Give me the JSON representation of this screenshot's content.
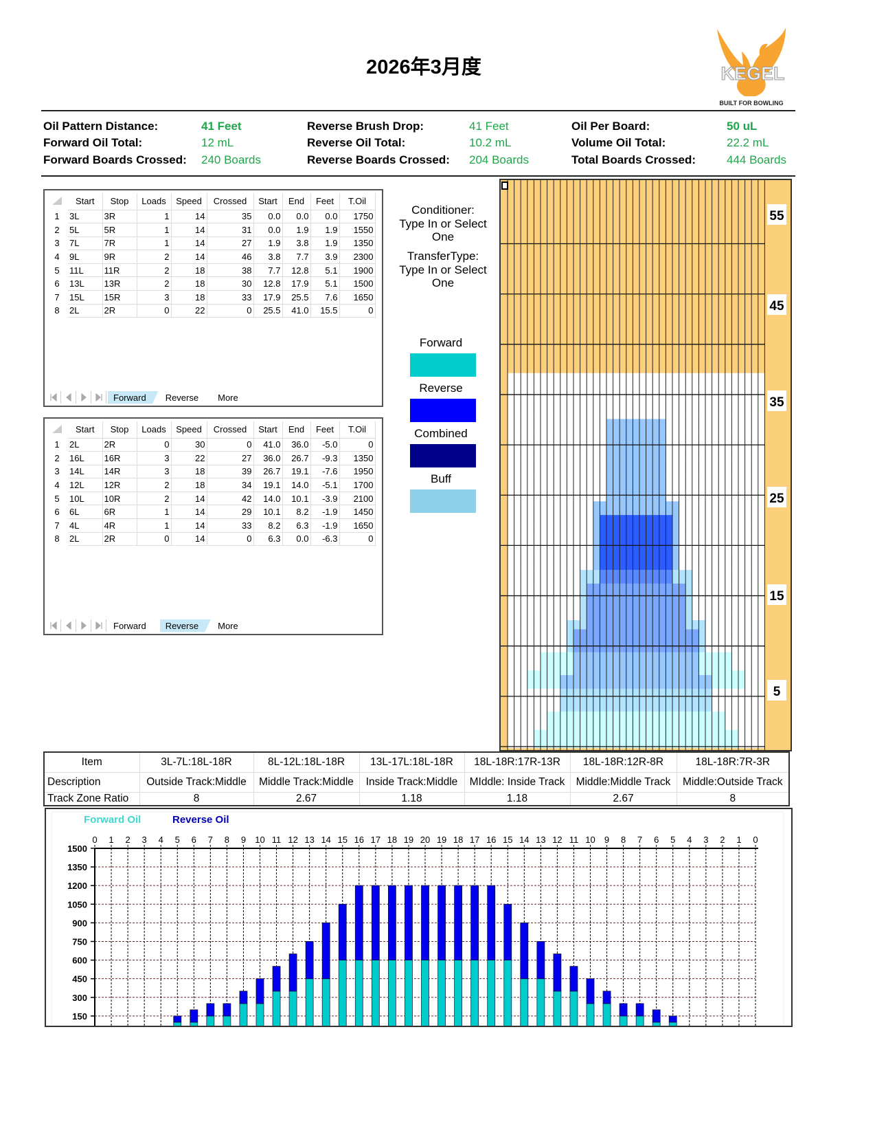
{
  "header": {
    "title": "2026年3月度",
    "logo_text": "KEGEL",
    "logo_tagline": "BUILT FOR BOWLING"
  },
  "stats": [
    [
      {
        "label": "Oil Pattern Distance:",
        "value": "41 Feet",
        "bold": true
      },
      {
        "label": "Reverse Brush Drop:",
        "value": "41 Feet"
      },
      {
        "label": "Oil Per Board:",
        "value": "50 uL",
        "bold": true
      }
    ],
    [
      {
        "label": "Forward Oil Total:",
        "value": "12 mL"
      },
      {
        "label": "Reverse Oil Total:",
        "value": "10.2 mL"
      },
      {
        "label": "Volume Oil Total:",
        "value": "22.2 mL"
      }
    ],
    [
      {
        "label": "Forward Boards Crossed:",
        "value": "240 Boards"
      },
      {
        "label": "Reverse Boards Crossed:",
        "value": "204 Boards"
      },
      {
        "label": "Total Boards Crossed:",
        "value": "444 Boards"
      }
    ]
  ],
  "columns": [
    "Start",
    "Stop",
    "Loads",
    "Speed",
    "Crossed",
    "Start",
    "End",
    "Feet",
    "T.Oil"
  ],
  "forward_table": {
    "rows": [
      [
        "3L",
        "3R",
        "1",
        "14",
        "35",
        "0.0",
        "0.0",
        "0.0",
        "1750"
      ],
      [
        "5L",
        "5R",
        "1",
        "14",
        "31",
        "0.0",
        "1.9",
        "1.9",
        "1550"
      ],
      [
        "7L",
        "7R",
        "1",
        "14",
        "27",
        "1.9",
        "3.8",
        "1.9",
        "1350"
      ],
      [
        "9L",
        "9R",
        "2",
        "14",
        "46",
        "3.8",
        "7.7",
        "3.9",
        "2300"
      ],
      [
        "11L",
        "11R",
        "2",
        "18",
        "38",
        "7.7",
        "12.8",
        "5.1",
        "1900"
      ],
      [
        "13L",
        "13R",
        "2",
        "18",
        "30",
        "12.8",
        "17.9",
        "5.1",
        "1500"
      ],
      [
        "15L",
        "15R",
        "3",
        "18",
        "33",
        "17.9",
        "25.5",
        "7.6",
        "1650"
      ],
      [
        "2L",
        "2R",
        "0",
        "22",
        "0",
        "25.5",
        "41.0",
        "15.5",
        "0"
      ]
    ],
    "active_tab": 0
  },
  "reverse_table": {
    "rows": [
      [
        "2L",
        "2R",
        "0",
        "30",
        "0",
        "41.0",
        "36.0",
        "-5.0",
        "0"
      ],
      [
        "16L",
        "16R",
        "3",
        "22",
        "27",
        "36.0",
        "26.7",
        "-9.3",
        "1350"
      ],
      [
        "14L",
        "14R",
        "3",
        "18",
        "39",
        "26.7",
        "19.1",
        "-7.6",
        "1950"
      ],
      [
        "12L",
        "12R",
        "2",
        "18",
        "34",
        "19.1",
        "14.0",
        "-5.1",
        "1700"
      ],
      [
        "10L",
        "10R",
        "2",
        "14",
        "42",
        "14.0",
        "10.1",
        "-3.9",
        "2100"
      ],
      [
        "6L",
        "6R",
        "1",
        "14",
        "29",
        "10.1",
        "8.2",
        "-1.9",
        "1450"
      ],
      [
        "4L",
        "4R",
        "1",
        "14",
        "33",
        "8.2",
        "6.3",
        "-1.9",
        "1650"
      ],
      [
        "2L",
        "2R",
        "0",
        "14",
        "0",
        "6.3",
        "0.0",
        "-6.3",
        "0"
      ]
    ],
    "active_tab": 1
  },
  "tabs": [
    "Forward",
    "Reverse",
    "More"
  ],
  "side": {
    "conditioner": [
      "Conditioner:",
      "Type In or Select",
      "One"
    ],
    "transfer": [
      "TransferType:",
      "Type In or Select",
      "One"
    ],
    "legend": [
      {
        "label": "Forward",
        "color": "#00cccc"
      },
      {
        "label": "Reverse",
        "color": "#0000ff"
      },
      {
        "label": "Combined",
        "color": "#00008b"
      },
      {
        "label": "Buff",
        "color": "#8ecfea"
      }
    ]
  },
  "oil_graph": {
    "distance_labels": [
      "55",
      "45",
      "35",
      "25",
      "15",
      "5"
    ],
    "lane_color": "#fccf7a"
  },
  "zone_table": {
    "rows": [
      [
        "Item",
        "3L-7L:18L-18R",
        "8L-12L:18L-18R",
        "13L-17L:18L-18R",
        "18L-18R:17R-13R",
        "18L-18R:12R-8R",
        "18L-18R:7R-3R"
      ],
      [
        "Description",
        "Outside Track:Middle",
        "Middle Track:Middle",
        "Inside Track:Middle",
        "MIddle: Inside Track",
        "Middle:Middle Track",
        "Middle:Outside Track"
      ],
      [
        "Track Zone Ratio",
        "8",
        "2.67",
        "1.18",
        "1.18",
        "2.67",
        "8"
      ]
    ]
  },
  "chart_data": {
    "type": "bar",
    "stacked": true,
    "legend": [
      "Forward Oil",
      "Reverse Oil"
    ],
    "colors": {
      "Forward Oil": "#00cccc",
      "Reverse Oil": "#0000ee"
    },
    "categories": [
      "0",
      "1",
      "2",
      "3",
      "4",
      "5",
      "6",
      "7",
      "8",
      "9",
      "10",
      "11",
      "12",
      "13",
      "14",
      "15",
      "16",
      "17",
      "18",
      "19",
      "20",
      "19",
      "18",
      "17",
      "16",
      "15",
      "14",
      "13",
      "12",
      "11",
      "10",
      "9",
      "8",
      "7",
      "6",
      "5",
      "4",
      "3",
      "2",
      "1",
      "0"
    ],
    "series": [
      {
        "name": "Forward Oil",
        "values": [
          0,
          0,
          0,
          0,
          0,
          100,
          100,
          150,
          150,
          250,
          250,
          350,
          350,
          450,
          450,
          600,
          600,
          600,
          600,
          600,
          600,
          600,
          600,
          600,
          600,
          600,
          450,
          450,
          350,
          350,
          250,
          250,
          150,
          150,
          100,
          100,
          0,
          0,
          0,
          0,
          0
        ]
      },
      {
        "name": "Reverse Oil",
        "values": [
          0,
          0,
          0,
          0,
          50,
          50,
          100,
          100,
          100,
          100,
          200,
          200,
          300,
          300,
          450,
          450,
          600,
          600,
          600,
          600,
          600,
          600,
          600,
          600,
          600,
          450,
          450,
          300,
          300,
          200,
          200,
          100,
          100,
          100,
          100,
          50,
          50,
          0,
          0,
          0,
          0
        ]
      }
    ],
    "yticks": [
      150,
      300,
      450,
      600,
      750,
      900,
      1050,
      1200,
      1350,
      1500
    ],
    "ylim": [
      0,
      1500
    ],
    "grid": true,
    "legend_position": "top-left"
  }
}
